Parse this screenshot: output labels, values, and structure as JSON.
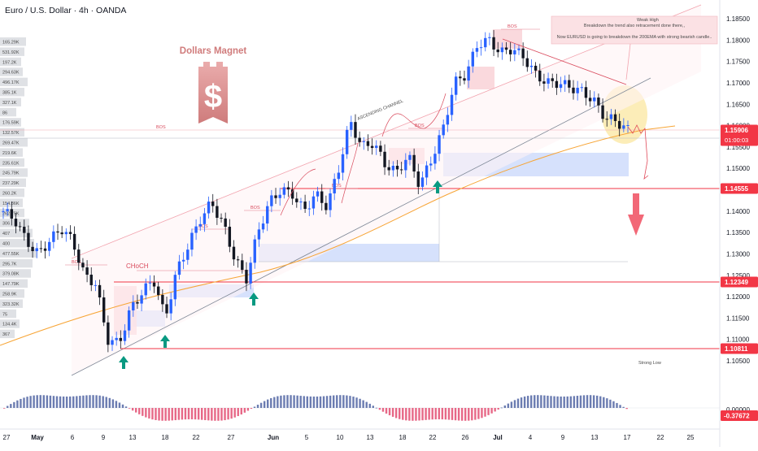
{
  "header": {
    "title": "Euro / U.S. Dollar · 4h · OANDA"
  },
  "brand": {
    "name": "Dollars Magnet",
    "color": "#d98a8a"
  },
  "colors": {
    "up": "#2962ff",
    "down": "#131722",
    "accent": "#f23645",
    "ema": "#f7a536"
  },
  "chart_data": {
    "type": "candlestick",
    "title": "Euro / U.S. Dollar · 4h · OANDA",
    "y_axis": {
      "range": [
        1.102,
        1.1875
      ],
      "ticks": [
        "1.18500",
        "1.18000",
        "1.17500",
        "1.17000",
        "1.16500",
        "1.16000",
        "1.15500",
        "1.15000",
        "1.14500",
        "1.14000",
        "1.13500",
        "1.13000",
        "1.12500",
        "1.12000",
        "1.11500",
        "1.11000",
        "1.10500"
      ]
    },
    "x_axis": {
      "ticks": [
        "27",
        "May",
        "6",
        "9",
        "13",
        "18",
        "22",
        "27",
        "Jun",
        "5",
        "10",
        "13",
        "18",
        "22",
        "26",
        "Jul",
        "4",
        "9",
        "13",
        "17",
        "22",
        "25"
      ]
    },
    "price_series": {
      "name": "EURUSD",
      "points": [
        [
          "Apr 27",
          1.14
        ],
        [
          "Apr 28",
          1.138
        ],
        [
          "Apr 30",
          1.133
        ],
        [
          "May 2",
          1.13
        ],
        [
          "May 4",
          1.133
        ],
        [
          "May 6",
          1.136
        ],
        [
          "May 7",
          1.133
        ],
        [
          "May 9",
          1.125
        ],
        [
          "May 10",
          1.123
        ],
        [
          "May 11",
          1.11
        ],
        [
          "May 12",
          1.109
        ],
        [
          "May 13",
          1.117
        ],
        [
          "May 14",
          1.121
        ],
        [
          "May 16",
          1.124
        ],
        [
          "May 18",
          1.115
        ],
        [
          "May 19",
          1.126
        ],
        [
          "May 21",
          1.132
        ],
        [
          "May 23",
          1.138
        ],
        [
          "May 25",
          1.142
        ],
        [
          "May 26",
          1.137
        ],
        [
          "May 27",
          1.129
        ],
        [
          "May 28",
          1.124
        ],
        [
          "May 29",
          1.135
        ],
        [
          "Jun 1",
          1.142
        ],
        [
          "Jun 3",
          1.145
        ],
        [
          "Jun 5",
          1.144
        ],
        [
          "Jun 6",
          1.14
        ],
        [
          "Jun 9",
          1.144
        ],
        [
          "Jun 10",
          1.141
        ],
        [
          "Jun 11",
          1.15
        ],
        [
          "Jun 12",
          1.161
        ],
        [
          "Jun 13",
          1.155
        ],
        [
          "Jun 16",
          1.156
        ],
        [
          "Jun 17",
          1.151
        ],
        [
          "Jun 18",
          1.149
        ],
        [
          "Jun 20",
          1.153
        ],
        [
          "Jun 22",
          1.146
        ],
        [
          "Jun 23",
          1.152
        ],
        [
          "Jun 24",
          1.159
        ],
        [
          "Jun 26",
          1.17
        ],
        [
          "Jun 28",
          1.172
        ],
        [
          "Jun 30",
          1.179
        ],
        [
          "Jul 1",
          1.18
        ],
        [
          "Jul 2",
          1.177
        ],
        [
          "Jul 3",
          1.178
        ],
        [
          "Jul 4",
          1.176
        ],
        [
          "Jul 7",
          1.172
        ],
        [
          "Jul 8",
          1.17
        ],
        [
          "Jul 10",
          1.17
        ],
        [
          "Jul 11",
          1.169
        ],
        [
          "Jul 13",
          1.168
        ],
        [
          "Jul 14",
          1.166
        ],
        [
          "Jul 15",
          1.162
        ],
        [
          "Jul 16",
          1.161
        ],
        [
          "Jul 17",
          1.159
        ]
      ]
    },
    "oscillator": {
      "last_value": "-0.37672",
      "zero_label": "0.00000"
    },
    "price_labels": [
      {
        "name": "current",
        "value": "1.15906",
        "countdown": "01:00:03",
        "color": "#f23645"
      },
      {
        "name": "level-1",
        "value": "1.14555",
        "color": "#f23645"
      },
      {
        "name": "level-2",
        "value": "1.12349",
        "color": "#f23645"
      },
      {
        "name": "level-3",
        "value": "1.10811",
        "color": "#f23645"
      }
    ],
    "annotations": {
      "note_line1": "Breakdown the trend also retracement done there,,",
      "note_line2": "Now EURUSD is going to breakdown the 200EMA with strong bearish candle..",
      "channel_label": "ASCENDING CHANNEL",
      "choch_label": "CHoCH",
      "bos_label": "BOS",
      "weak_high": "Weak High",
      "strong_low": "Strong Low"
    },
    "volume_profile_labels": [
      "165.29K",
      "531.92K",
      "197.2K",
      "294.63K",
      "496.17K",
      "385.1K",
      "327.1K",
      "86",
      "176.59K",
      "132.57K",
      "269.47K",
      "219.6K",
      "235.61K",
      "245.79K",
      "237.29K",
      "260.2K",
      "154.86K",
      "262.75K",
      "306",
      "407",
      "400",
      "477.55K",
      "295.7K",
      "379.08K",
      "147.79K",
      "258.9K",
      "323.32K",
      "75",
      "134.4K",
      "367"
    ]
  }
}
